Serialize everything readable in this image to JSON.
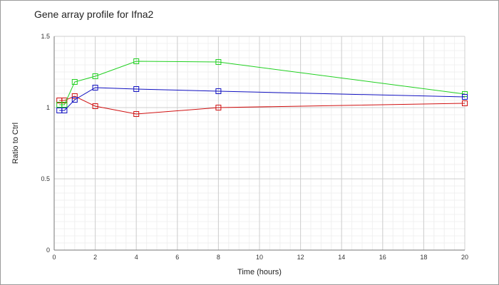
{
  "chart_data": {
    "type": "line",
    "title": "Gene array profile for Ifna2",
    "xlabel": "Time (hours)",
    "ylabel": "Ratio to Ctrl",
    "xlim": [
      0,
      20
    ],
    "ylim": [
      0,
      1.5
    ],
    "xticks": [
      0,
      2,
      4,
      6,
      8,
      10,
      12,
      14,
      16,
      18,
      20
    ],
    "yticks": [
      0,
      0.5,
      1,
      1.5
    ],
    "ytick_labels": [
      "0",
      "0.5",
      "1",
      "1.5"
    ],
    "grid": true,
    "minor_grid": true,
    "legend": "none",
    "series": [
      {
        "color": "#d01010",
        "marker": "square",
        "x": [
          0.25,
          0.5,
          1,
          2,
          4,
          8,
          20
        ],
        "y": [
          1.05,
          1.05,
          1.08,
          1.01,
          0.955,
          1.0,
          1.03
        ]
      },
      {
        "color": "#20d020",
        "marker": "square",
        "x": [
          0.25,
          0.5,
          1,
          2,
          4,
          8,
          20
        ],
        "y": [
          1.02,
          1.02,
          1.18,
          1.22,
          1.325,
          1.32,
          1.095
        ]
      },
      {
        "color": "#1010c0",
        "marker": "square",
        "x": [
          0.25,
          0.5,
          1,
          2,
          4,
          8,
          20
        ],
        "y": [
          0.98,
          0.98,
          1.055,
          1.14,
          1.13,
          1.115,
          1.075
        ]
      }
    ]
  }
}
